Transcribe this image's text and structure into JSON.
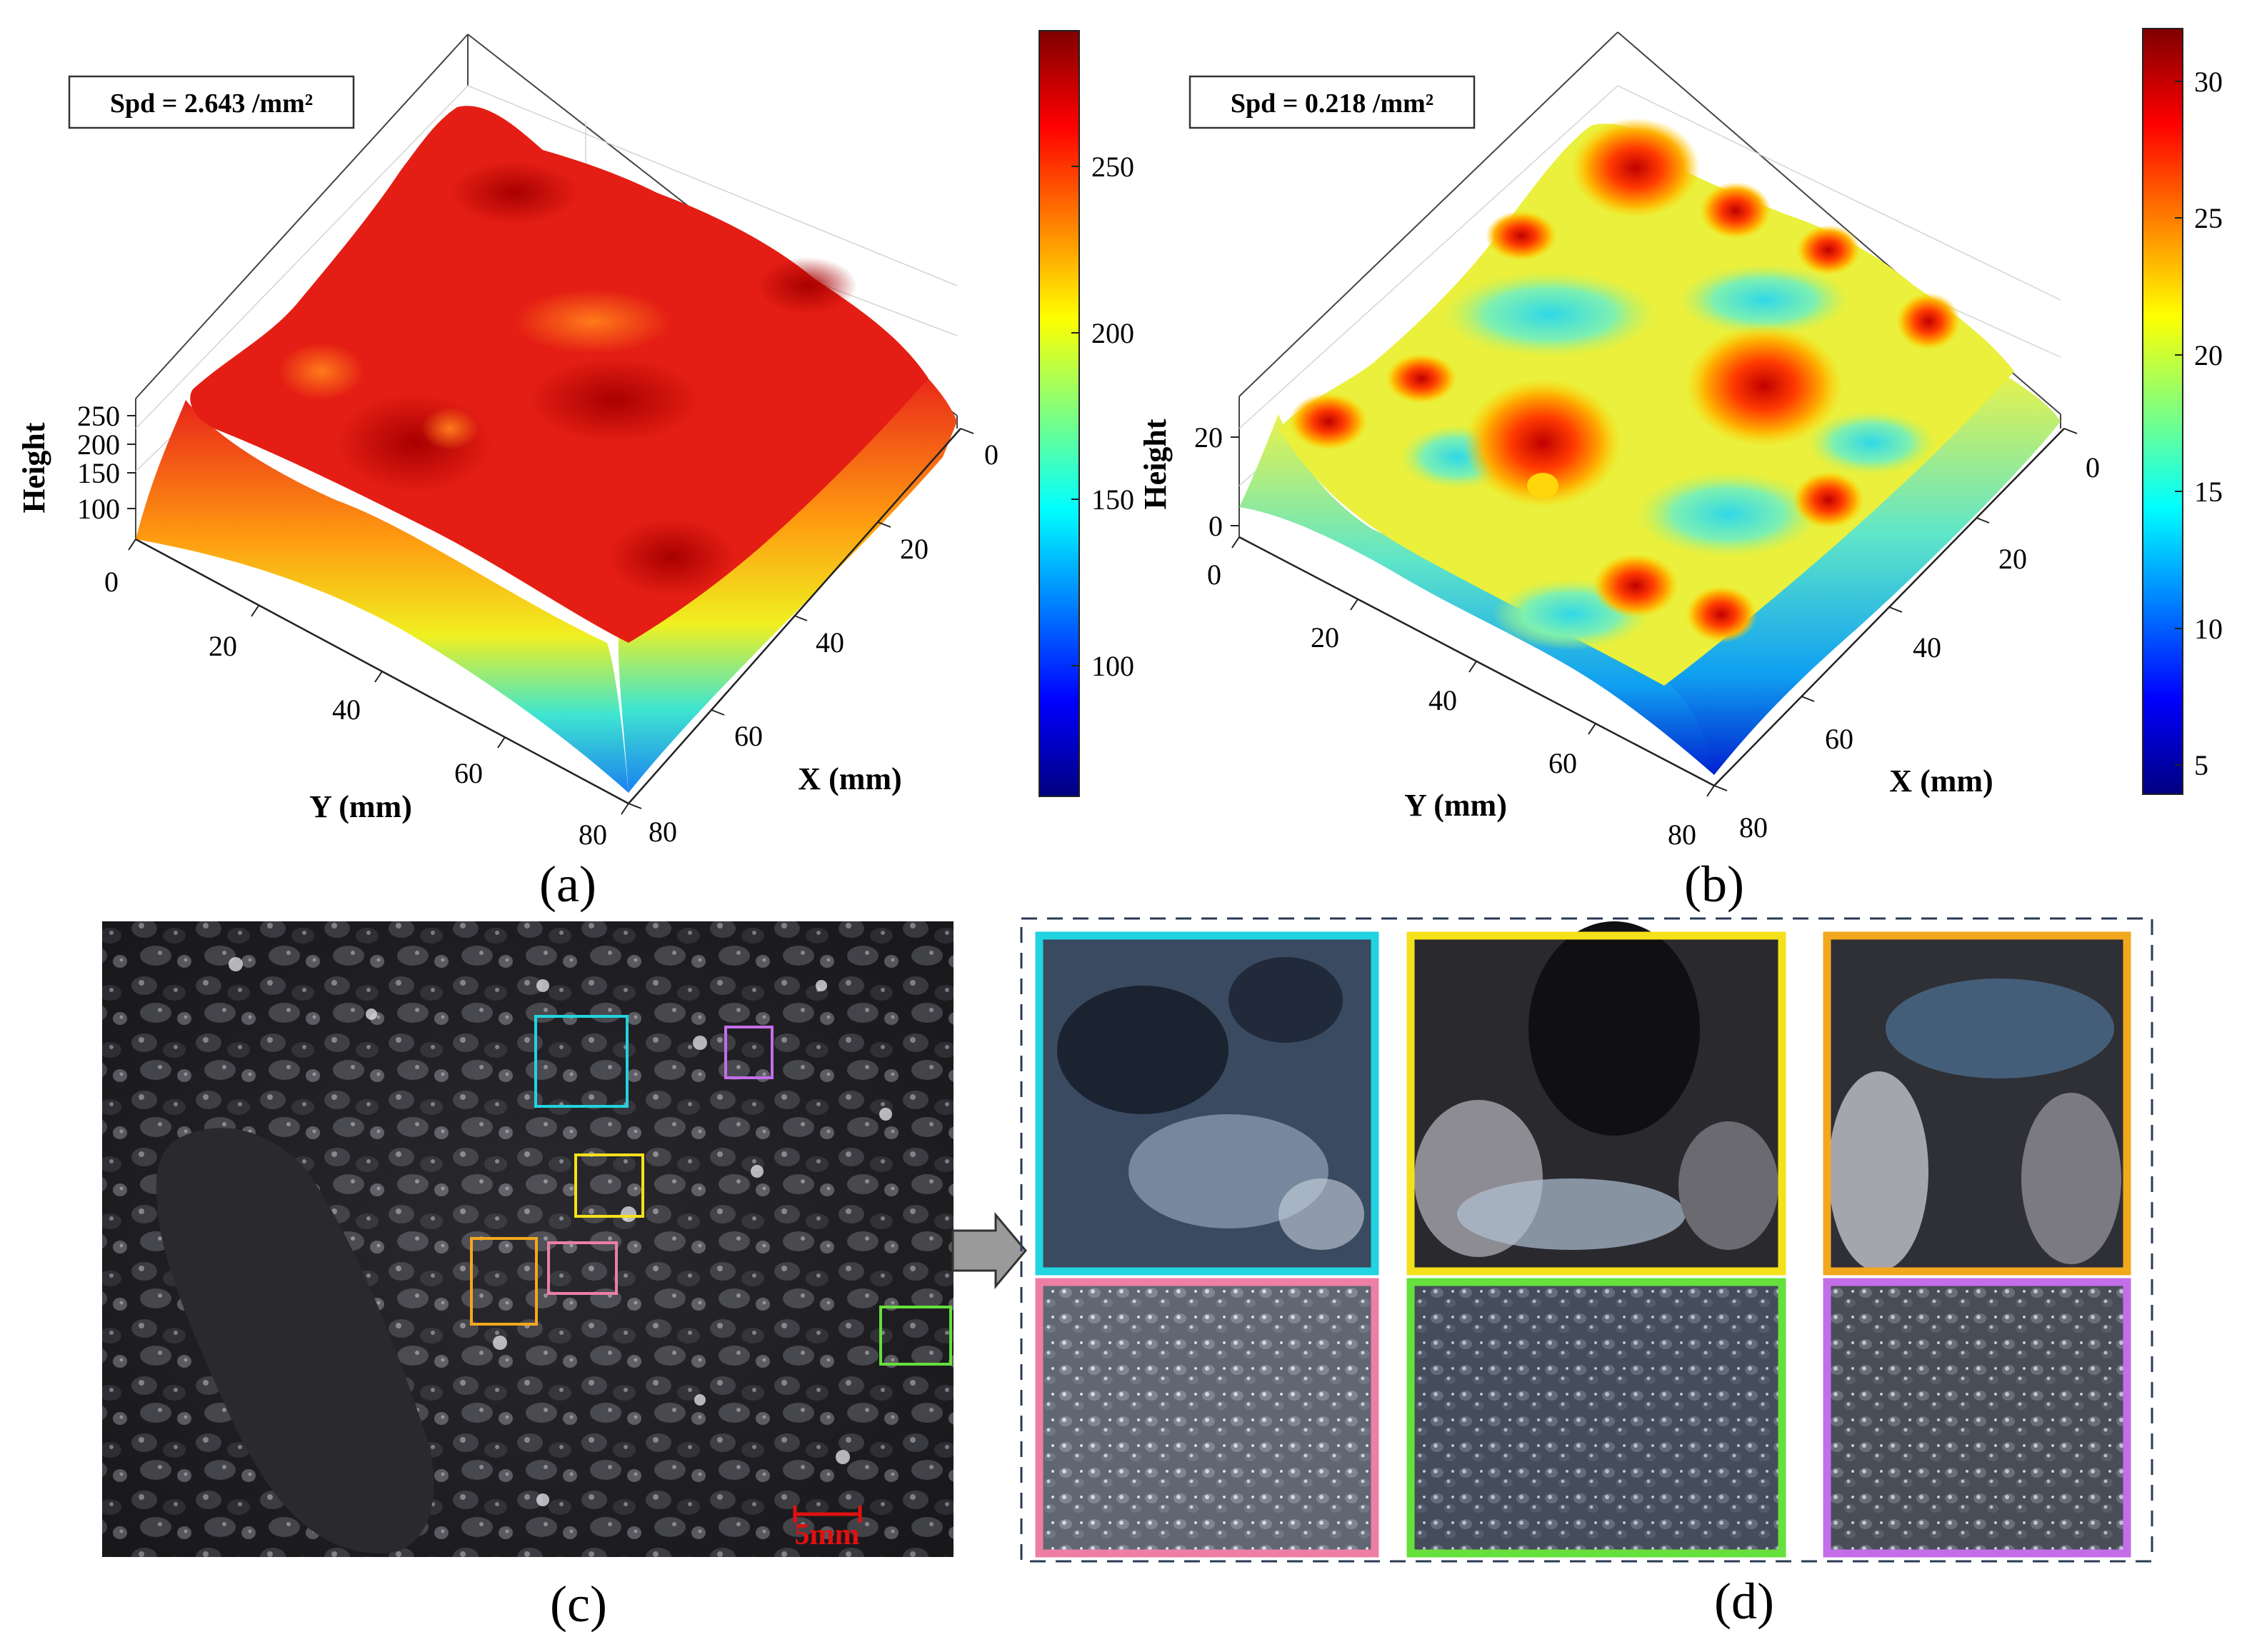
{
  "figure": {
    "panels": [
      {
        "id": "a",
        "label": "(a)",
        "annotation": "Spd = 2.643 /mm²",
        "x_ticks": [
          "0",
          "20",
          "40",
          "60",
          "80"
        ],
        "y_ticks": [
          "0",
          "20",
          "40",
          "60",
          "80"
        ],
        "z_ticks": [
          "100",
          "150",
          "200",
          "250"
        ],
        "colorbar_ticks": [
          "100",
          "150",
          "200",
          "250"
        ],
        "xlabel": "X (mm)",
        "ylabel": "Y (mm)",
        "zlabel": "Height"
      },
      {
        "id": "b",
        "label": "(b)",
        "annotation": "Spd = 0.218 /mm²",
        "x_ticks": [
          "0",
          "20",
          "40",
          "60",
          "80"
        ],
        "y_ticks": [
          "0",
          "20",
          "40",
          "60",
          "80"
        ],
        "z_ticks": [
          "0",
          "20"
        ],
        "colorbar_ticks": [
          "5",
          "10",
          "15",
          "20",
          "25",
          "30"
        ],
        "xlabel": "X (mm)",
        "ylabel": "Y (mm)",
        "zlabel": "Height"
      }
    ],
    "photo": {
      "label": "(c)",
      "scale_bar": "5mm"
    },
    "zoom": {
      "label": "(d)"
    },
    "box_colors": {
      "cyan": "#22d3e0",
      "yellow": "#f5e11a",
      "orange": "#f2a81d",
      "pink": "#ee7fa4",
      "green": "#66e03c",
      "purple": "#c36ee8"
    }
  },
  "chart_data": [
    {
      "type": "surface",
      "title": "",
      "xlabel": "X (mm)",
      "ylabel": "Y (mm)",
      "zlabel": "Height",
      "xlim": [
        0,
        80
      ],
      "ylim": [
        0,
        80
      ],
      "zlim": [
        60,
        290
      ],
      "colorbar": {
        "colormap": "jet",
        "range": [
          60,
          290
        ],
        "ticks": [
          100,
          150,
          200,
          250
        ]
      },
      "annotation": "Spd = 2.643 /mm²"
    },
    {
      "type": "surface",
      "title": "",
      "xlabel": "X (mm)",
      "ylabel": "Y (mm)",
      "zlabel": "Height",
      "xlim": [
        0,
        80
      ],
      "ylim": [
        0,
        80
      ],
      "zlim": [
        0,
        32
      ],
      "colorbar": {
        "colormap": "jet",
        "range": [
          4,
          32
        ],
        "ticks": [
          5,
          10,
          15,
          20,
          25,
          30
        ]
      },
      "annotation": "Spd = 0.218 /mm²"
    }
  ]
}
